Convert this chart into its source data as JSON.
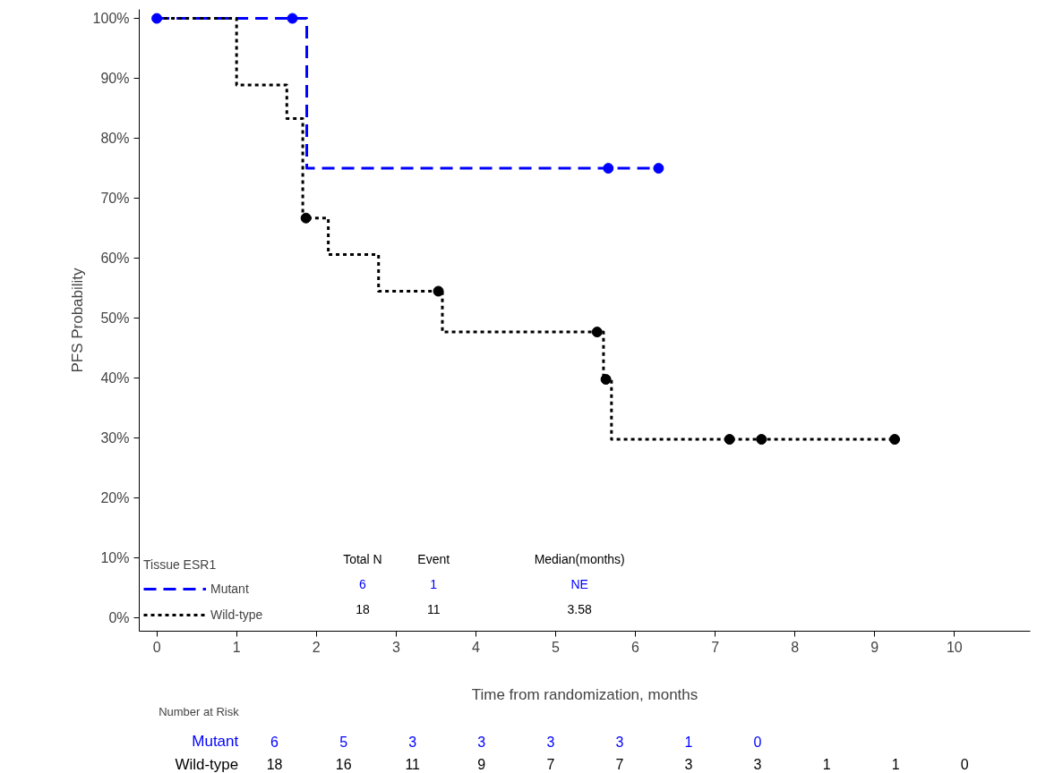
{
  "chart_data": {
    "type": "step",
    "xlabel": "Time from randomization, months",
    "ylabel": "PFS Probability",
    "legend_title": "Tissue ESR1",
    "series": [
      {
        "name": "Mutant",
        "color": "#0000ff",
        "line_style": "dashed",
        "marker": "none",
        "x": [
          0,
          1.88,
          6.29
        ],
        "values": [
          100,
          75,
          75
        ]
      },
      {
        "name": "Wild-type",
        "color": "#000000",
        "line_style": "dotted",
        "marker": "none",
        "x": [
          0,
          1.0,
          1.63,
          1.83,
          2.15,
          2.78,
          3.58,
          5.6,
          5.7,
          9.25
        ],
        "values": [
          100,
          88.9,
          83.3,
          66.7,
          60.6,
          54.5,
          47.7,
          39.8,
          29.8,
          29.8
        ]
      },
      {
        "type": "scatter",
        "color": "#0000ff",
        "marker": "circle",
        "x": [
          0,
          1.7,
          5.66,
          6.29
        ],
        "values": [
          100,
          100,
          75,
          75
        ]
      },
      {
        "type": "scatter",
        "color": "#000000",
        "marker": "circle",
        "x": [
          1.87,
          3.53,
          5.52,
          5.63,
          7.18,
          7.58,
          9.25
        ],
        "values": [
          66.7,
          54.5,
          47.7,
          39.8,
          29.8,
          29.8,
          29.8
        ]
      }
    ],
    "xlim": [
      -0.22,
      10.95
    ],
    "xticks": [
      0,
      1,
      2,
      3,
      4,
      5,
      6,
      7,
      8,
      9,
      10
    ],
    "ylim": [
      -2.2,
      101.5
    ],
    "yticks": [
      {
        "value": 0,
        "label": "0%"
      },
      {
        "value": 10,
        "label": "10%"
      },
      {
        "value": 20,
        "label": "20%"
      },
      {
        "value": 30,
        "label": "30%"
      },
      {
        "value": 40,
        "label": "40%"
      },
      {
        "value": 50,
        "label": "50%"
      },
      {
        "value": 60,
        "label": "60%"
      },
      {
        "value": 70,
        "label": "70%"
      },
      {
        "value": 80,
        "label": "80%"
      },
      {
        "value": 90,
        "label": "90%"
      },
      {
        "value": 100,
        "label": "100%"
      }
    ],
    "grid": false,
    "legend": "bottom left",
    "annotations": [
      "Number at Risk",
      "Total N\tEvent\tMedian(months)",
      "6\t1\tNE",
      "18\t11\t3.58",
      "Mutant\t6\t5\t3\t3\t3\t3\t1\t0",
      "Wild-type\t18\t16\t11\t9\t7\t7\t3\t3\t1\t1\t0"
    ]
  }
}
